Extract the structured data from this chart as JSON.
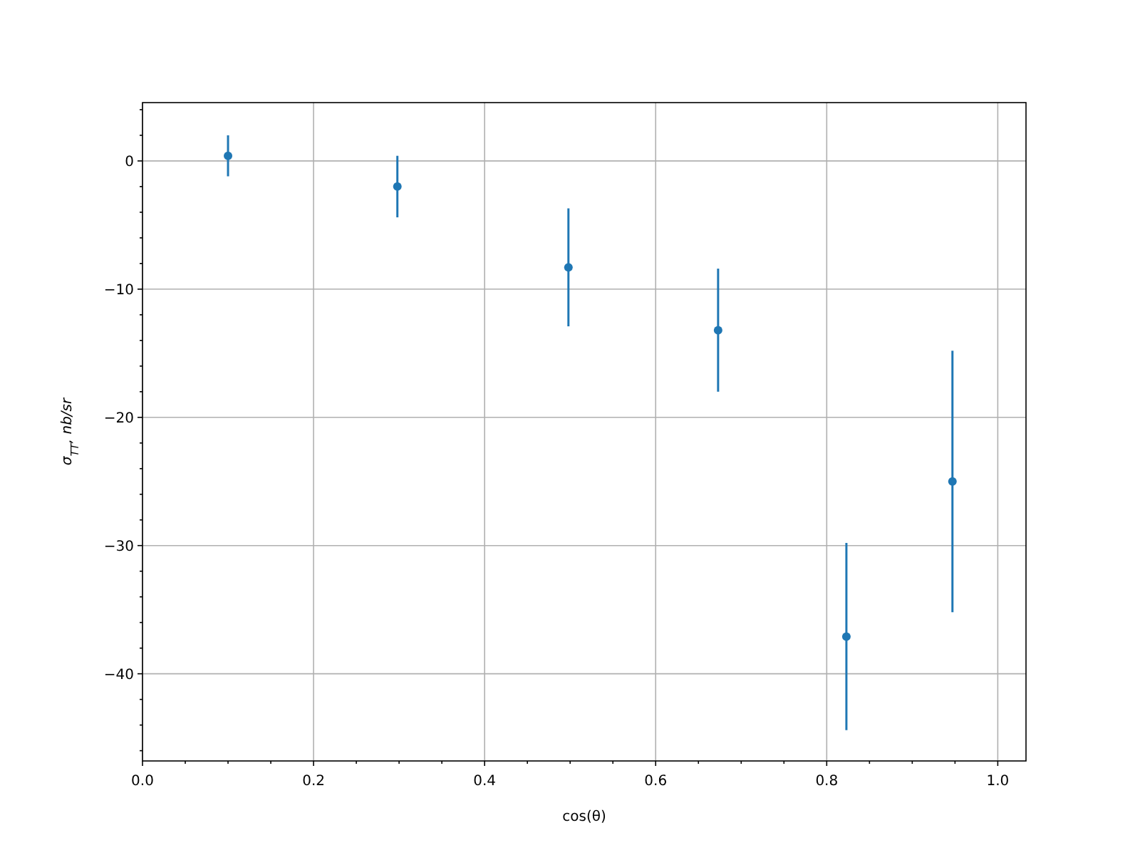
{
  "chart_data": {
    "type": "scatter",
    "xlabel": "cos(θ)",
    "ylabel": "σ$_{TT}$, nb/sr",
    "x": [
      0.1,
      0.298,
      0.498,
      0.673,
      0.823,
      0.947
    ],
    "series": [
      {
        "color": "#1f77b4",
        "values": [
          0.4,
          -2.0,
          -8.3,
          -13.2,
          -37.1,
          -25.0
        ],
        "errors": [
          1.6,
          2.4,
          4.6,
          4.8,
          7.3,
          10.2
        ]
      }
    ],
    "xlim": [
      0,
      1.033
    ],
    "ylim": [
      -46.8,
      4.55
    ],
    "xticks": [
      {
        "value": 0,
        "label": "0.0"
      },
      {
        "value": 0.05,
        "label": null
      },
      {
        "value": 0.1,
        "label": null
      },
      {
        "value": 0.15,
        "label": null
      },
      {
        "value": 0.2,
        "label": "0.2"
      },
      {
        "value": 0.25,
        "label": null
      },
      {
        "value": 0.3,
        "label": null
      },
      {
        "value": 0.35,
        "label": null
      },
      {
        "value": 0.4,
        "label": "0.4"
      },
      {
        "value": 0.45,
        "label": null
      },
      {
        "value": 0.5,
        "label": null
      },
      {
        "value": 0.55,
        "label": null
      },
      {
        "value": 0.6,
        "label": "0.6"
      },
      {
        "value": 0.65,
        "label": null
      },
      {
        "value": 0.7,
        "label": null
      },
      {
        "value": 0.75,
        "label": null
      },
      {
        "value": 0.8,
        "label": "0.8"
      },
      {
        "value": 0.85,
        "label": null
      },
      {
        "value": 0.9,
        "label": null
      },
      {
        "value": 0.95,
        "label": null
      },
      {
        "value": 1.0,
        "label": "1.0"
      }
    ],
    "yticks": [
      {
        "value": -46,
        "label": null
      },
      {
        "value": -44,
        "label": null
      },
      {
        "value": -42,
        "label": null
      },
      {
        "value": -40,
        "label": "−40"
      },
      {
        "value": -38,
        "label": null
      },
      {
        "value": -36,
        "label": null
      },
      {
        "value": -34,
        "label": null
      },
      {
        "value": -32,
        "label": null
      },
      {
        "value": -30,
        "label": "−30"
      },
      {
        "value": -28,
        "label": null
      },
      {
        "value": -26,
        "label": null
      },
      {
        "value": -24,
        "label": null
      },
      {
        "value": -22,
        "label": null
      },
      {
        "value": -20,
        "label": "−20"
      },
      {
        "value": -18,
        "label": null
      },
      {
        "value": -16,
        "label": null
      },
      {
        "value": -14,
        "label": null
      },
      {
        "value": -12,
        "label": null
      },
      {
        "value": -10,
        "label": "−10"
      },
      {
        "value": -8,
        "label": null
      },
      {
        "value": -6,
        "label": null
      },
      {
        "value": -4,
        "label": null
      },
      {
        "value": -2,
        "label": null
      },
      {
        "value": 0,
        "label": "0"
      },
      {
        "value": 2,
        "label": null
      },
      {
        "value": 4,
        "label": null
      }
    ],
    "grid": true,
    "marker": "circle"
  }
}
